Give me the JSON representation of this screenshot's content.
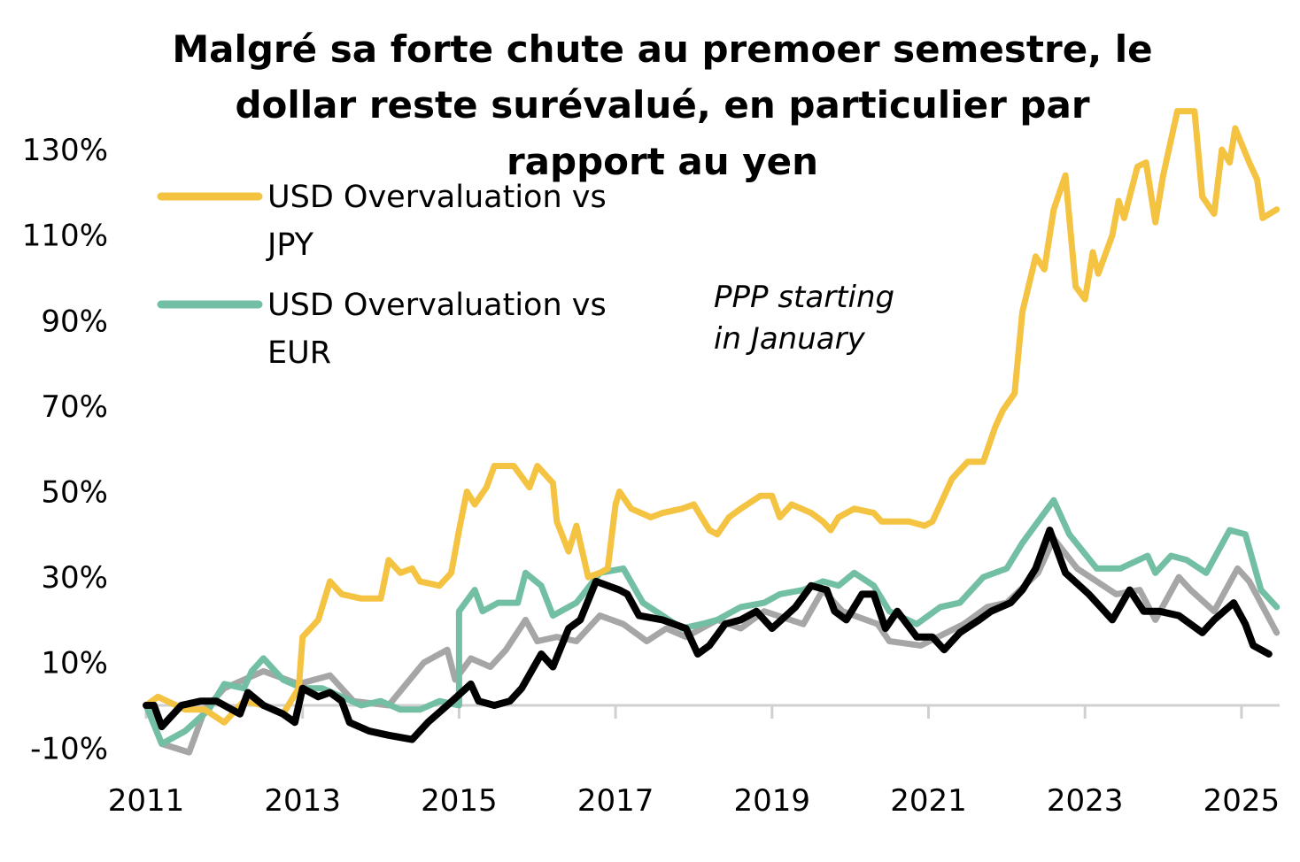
{
  "chart_data": {
    "type": "line",
    "title_lines": [
      "Malgré sa forte chute au premoer semestre, le",
      "dollar reste surévalué, en particulier par",
      "rapport au yen"
    ],
    "xlabel": "",
    "ylabel": "",
    "xlim": [
      2011,
      2025.55
    ],
    "ylim": [
      -10,
      140
    ],
    "x_ticks": [
      "2011",
      "2013",
      "2015",
      "2017",
      "2019",
      "2021",
      "2023",
      "2025"
    ],
    "y_ticks": [
      "130%",
      "110%",
      "90%",
      "70%",
      "50%",
      "30%",
      "10%",
      "-10%"
    ],
    "grid": false,
    "legend_position": "top-left",
    "annotation": [
      "PPP starting",
      "in January"
    ],
    "series": [
      {
        "name": "USD Overvaluation vs JPY",
        "legend_lines": [
          "USD Overvaluation vs",
          "JPY"
        ],
        "color": "#F5C342",
        "points": [
          [
            2011,
            0
          ],
          [
            2011.15,
            2
          ],
          [
            2011.5,
            -1
          ],
          [
            2011.75,
            -1
          ],
          [
            2012,
            -4
          ],
          [
            2012.25,
            1
          ],
          [
            2012.5,
            0
          ],
          [
            2012.75,
            -2
          ],
          [
            2012.95,
            4
          ],
          [
            2013.0,
            16
          ],
          [
            2013.2,
            20
          ],
          [
            2013.35,
            29
          ],
          [
            2013.5,
            26
          ],
          [
            2013.75,
            25
          ],
          [
            2014.0,
            25
          ],
          [
            2014.1,
            34
          ],
          [
            2014.25,
            31
          ],
          [
            2014.4,
            32
          ],
          [
            2014.5,
            29
          ],
          [
            2014.75,
            28
          ],
          [
            2014.9,
            31
          ],
          [
            2015.0,
            41
          ],
          [
            2015.1,
            50
          ],
          [
            2015.2,
            47
          ],
          [
            2015.35,
            51
          ],
          [
            2015.45,
            56
          ],
          [
            2015.7,
            56
          ],
          [
            2015.9,
            51
          ],
          [
            2016.0,
            56
          ],
          [
            2016.2,
            52
          ],
          [
            2016.25,
            43
          ],
          [
            2016.4,
            36
          ],
          [
            2016.5,
            42
          ],
          [
            2016.65,
            30
          ],
          [
            2016.8,
            31
          ],
          [
            2016.9,
            32
          ],
          [
            2017.0,
            47
          ],
          [
            2017.05,
            50
          ],
          [
            2017.2,
            46
          ],
          [
            2017.45,
            44
          ],
          [
            2017.6,
            45
          ],
          [
            2017.85,
            46
          ],
          [
            2018.0,
            47
          ],
          [
            2018.2,
            41
          ],
          [
            2018.3,
            40
          ],
          [
            2018.45,
            44
          ],
          [
            2018.6,
            46
          ],
          [
            2018.85,
            49
          ],
          [
            2019.0,
            49
          ],
          [
            2019.1,
            44
          ],
          [
            2019.25,
            47
          ],
          [
            2019.5,
            45
          ],
          [
            2019.65,
            43
          ],
          [
            2019.75,
            41
          ],
          [
            2019.85,
            44
          ],
          [
            2020.05,
            46
          ],
          [
            2020.3,
            45
          ],
          [
            2020.4,
            43
          ],
          [
            2020.6,
            43
          ],
          [
            2020.75,
            43
          ],
          [
            2020.95,
            42
          ],
          [
            2021.05,
            43
          ],
          [
            2021.15,
            47
          ],
          [
            2021.3,
            53
          ],
          [
            2021.5,
            57
          ],
          [
            2021.7,
            57
          ],
          [
            2021.85,
            65
          ],
          [
            2021.95,
            69
          ],
          [
            2022.1,
            73
          ],
          [
            2022.2,
            92
          ],
          [
            2022.37,
            105
          ],
          [
            2022.48,
            102
          ],
          [
            2022.6,
            116
          ],
          [
            2022.75,
            124
          ],
          [
            2022.88,
            98
          ],
          [
            2023.0,
            95
          ],
          [
            2023.1,
            106
          ],
          [
            2023.17,
            101
          ],
          [
            2023.35,
            110
          ],
          [
            2023.43,
            118
          ],
          [
            2023.5,
            114
          ],
          [
            2023.67,
            126
          ],
          [
            2023.78,
            127
          ],
          [
            2023.9,
            113
          ],
          [
            2024.0,
            124
          ],
          [
            2024.18,
            139
          ],
          [
            2024.4,
            139
          ],
          [
            2024.5,
            119
          ],
          [
            2024.65,
            115
          ],
          [
            2024.75,
            130
          ],
          [
            2024.85,
            127
          ],
          [
            2024.92,
            135
          ],
          [
            2025.1,
            127
          ],
          [
            2025.2,
            123
          ],
          [
            2025.27,
            114
          ],
          [
            2025.45,
            116
          ]
        ]
      },
      {
        "name": "USD Overvaluation vs EUR",
        "legend_lines": [
          "USD Overvaluation vs",
          "EUR"
        ],
        "color": "#72BFA3",
        "points": [
          [
            2011,
            0
          ],
          [
            2011.2,
            -9
          ],
          [
            2011.5,
            -6
          ],
          [
            2011.8,
            -1
          ],
          [
            2012.0,
            5
          ],
          [
            2012.25,
            4
          ],
          [
            2012.35,
            8
          ],
          [
            2012.5,
            11
          ],
          [
            2012.75,
            6
          ],
          [
            2013.0,
            4
          ],
          [
            2013.25,
            4
          ],
          [
            2013.5,
            2
          ],
          [
            2013.75,
            0
          ],
          [
            2014.0,
            1
          ],
          [
            2014.25,
            -1
          ],
          [
            2014.5,
            -1
          ],
          [
            2014.75,
            1
          ],
          [
            2015.0,
            0
          ],
          [
            2015.0,
            22
          ],
          [
            2015.2,
            27
          ],
          [
            2015.3,
            22
          ],
          [
            2015.5,
            24
          ],
          [
            2015.75,
            24
          ],
          [
            2015.85,
            31
          ],
          [
            2016.05,
            28
          ],
          [
            2016.2,
            21
          ],
          [
            2016.5,
            24
          ],
          [
            2016.8,
            31
          ],
          [
            2017.1,
            32
          ],
          [
            2017.35,
            24
          ],
          [
            2017.6,
            21
          ],
          [
            2017.85,
            18
          ],
          [
            2018.1,
            19
          ],
          [
            2018.3,
            20
          ],
          [
            2018.6,
            23
          ],
          [
            2018.9,
            24
          ],
          [
            2019.1,
            26
          ],
          [
            2019.4,
            27
          ],
          [
            2019.65,
            29
          ],
          [
            2019.85,
            28
          ],
          [
            2020.05,
            31
          ],
          [
            2020.3,
            28
          ],
          [
            2020.5,
            22
          ],
          [
            2020.85,
            19
          ],
          [
            2021.15,
            23
          ],
          [
            2021.4,
            24
          ],
          [
            2021.7,
            30
          ],
          [
            2022.0,
            32
          ],
          [
            2022.2,
            38
          ],
          [
            2022.4,
            43
          ],
          [
            2022.6,
            48
          ],
          [
            2022.8,
            40
          ],
          [
            2023.15,
            32
          ],
          [
            2023.45,
            32
          ],
          [
            2023.8,
            35
          ],
          [
            2023.9,
            31
          ],
          [
            2024.1,
            35
          ],
          [
            2024.3,
            34
          ],
          [
            2024.55,
            31
          ],
          [
            2024.85,
            41
          ],
          [
            2025.05,
            40
          ],
          [
            2025.25,
            27
          ],
          [
            2025.45,
            23
          ]
        ]
      },
      {
        "color": "#A6A6A6",
        "points": [
          [
            2011,
            0
          ],
          [
            2011.2,
            -9
          ],
          [
            2011.55,
            -11
          ],
          [
            2011.75,
            -1
          ],
          [
            2012.0,
            4
          ],
          [
            2012.5,
            8
          ],
          [
            2012.95,
            5
          ],
          [
            2013.35,
            7
          ],
          [
            2013.65,
            1
          ],
          [
            2014.1,
            0
          ],
          [
            2014.55,
            10
          ],
          [
            2014.85,
            13
          ],
          [
            2014.95,
            6
          ],
          [
            2015.15,
            11
          ],
          [
            2015.4,
            9
          ],
          [
            2015.6,
            13
          ],
          [
            2015.85,
            20
          ],
          [
            2016.0,
            15
          ],
          [
            2016.25,
            16
          ],
          [
            2016.5,
            15
          ],
          [
            2016.8,
            21
          ],
          [
            2017.1,
            19
          ],
          [
            2017.4,
            15
          ],
          [
            2017.65,
            18
          ],
          [
            2017.9,
            16
          ],
          [
            2018.3,
            20
          ],
          [
            2018.6,
            18
          ],
          [
            2018.9,
            22
          ],
          [
            2019.4,
            19
          ],
          [
            2019.65,
            27
          ],
          [
            2019.9,
            22
          ],
          [
            2020.35,
            19
          ],
          [
            2020.5,
            15
          ],
          [
            2020.9,
            14
          ],
          [
            2021.45,
            19
          ],
          [
            2021.75,
            23
          ],
          [
            2022.0,
            24
          ],
          [
            2022.4,
            31
          ],
          [
            2022.6,
            39
          ],
          [
            2022.9,
            32
          ],
          [
            2023.4,
            26
          ],
          [
            2023.7,
            27
          ],
          [
            2023.9,
            20
          ],
          [
            2024.2,
            30
          ],
          [
            2024.35,
            27
          ],
          [
            2024.65,
            22
          ],
          [
            2024.95,
            32
          ],
          [
            2025.1,
            29
          ],
          [
            2025.45,
            17
          ]
        ]
      },
      {
        "color": "#000000",
        "points": [
          [
            2011,
            0
          ],
          [
            2011.1,
            0
          ],
          [
            2011.2,
            -5
          ],
          [
            2011.45,
            0
          ],
          [
            2011.7,
            1
          ],
          [
            2011.9,
            1
          ],
          [
            2012.2,
            -2
          ],
          [
            2012.3,
            3
          ],
          [
            2012.5,
            0
          ],
          [
            2012.75,
            -2
          ],
          [
            2012.9,
            -4
          ],
          [
            2013.0,
            4
          ],
          [
            2013.2,
            2
          ],
          [
            2013.35,
            3
          ],
          [
            2013.5,
            1
          ],
          [
            2013.6,
            -4
          ],
          [
            2013.85,
            -6
          ],
          [
            2014.1,
            -7
          ],
          [
            2014.4,
            -8
          ],
          [
            2014.6,
            -4
          ],
          [
            2014.85,
            0
          ],
          [
            2015.15,
            5
          ],
          [
            2015.25,
            1
          ],
          [
            2015.45,
            0
          ],
          [
            2015.65,
            1
          ],
          [
            2015.8,
            4
          ],
          [
            2016.05,
            12
          ],
          [
            2016.2,
            9
          ],
          [
            2016.4,
            18
          ],
          [
            2016.55,
            20
          ],
          [
            2016.75,
            29
          ],
          [
            2017.05,
            27
          ],
          [
            2017.15,
            26
          ],
          [
            2017.3,
            21
          ],
          [
            2017.6,
            20
          ],
          [
            2017.9,
            18
          ],
          [
            2018.05,
            12
          ],
          [
            2018.2,
            14
          ],
          [
            2018.4,
            19
          ],
          [
            2018.6,
            20
          ],
          [
            2018.8,
            22
          ],
          [
            2019.0,
            18
          ],
          [
            2019.3,
            23
          ],
          [
            2019.5,
            28
          ],
          [
            2019.7,
            27
          ],
          [
            2019.8,
            22
          ],
          [
            2019.95,
            20
          ],
          [
            2020.15,
            26
          ],
          [
            2020.3,
            26
          ],
          [
            2020.45,
            18
          ],
          [
            2020.6,
            22
          ],
          [
            2020.85,
            16
          ],
          [
            2021.05,
            16
          ],
          [
            2021.2,
            13
          ],
          [
            2021.4,
            17
          ],
          [
            2021.65,
            20
          ],
          [
            2021.8,
            22
          ],
          [
            2022.05,
            24
          ],
          [
            2022.2,
            27
          ],
          [
            2022.37,
            32
          ],
          [
            2022.55,
            41
          ],
          [
            2022.75,
            31
          ],
          [
            2023.05,
            26
          ],
          [
            2023.2,
            23
          ],
          [
            2023.35,
            20
          ],
          [
            2023.57,
            27
          ],
          [
            2023.75,
            22
          ],
          [
            2023.95,
            22
          ],
          [
            2024.2,
            21
          ],
          [
            2024.5,
            17
          ],
          [
            2024.65,
            20
          ],
          [
            2024.9,
            24
          ],
          [
            2025.05,
            19
          ],
          [
            2025.15,
            14
          ],
          [
            2025.35,
            12
          ]
        ]
      }
    ]
  }
}
